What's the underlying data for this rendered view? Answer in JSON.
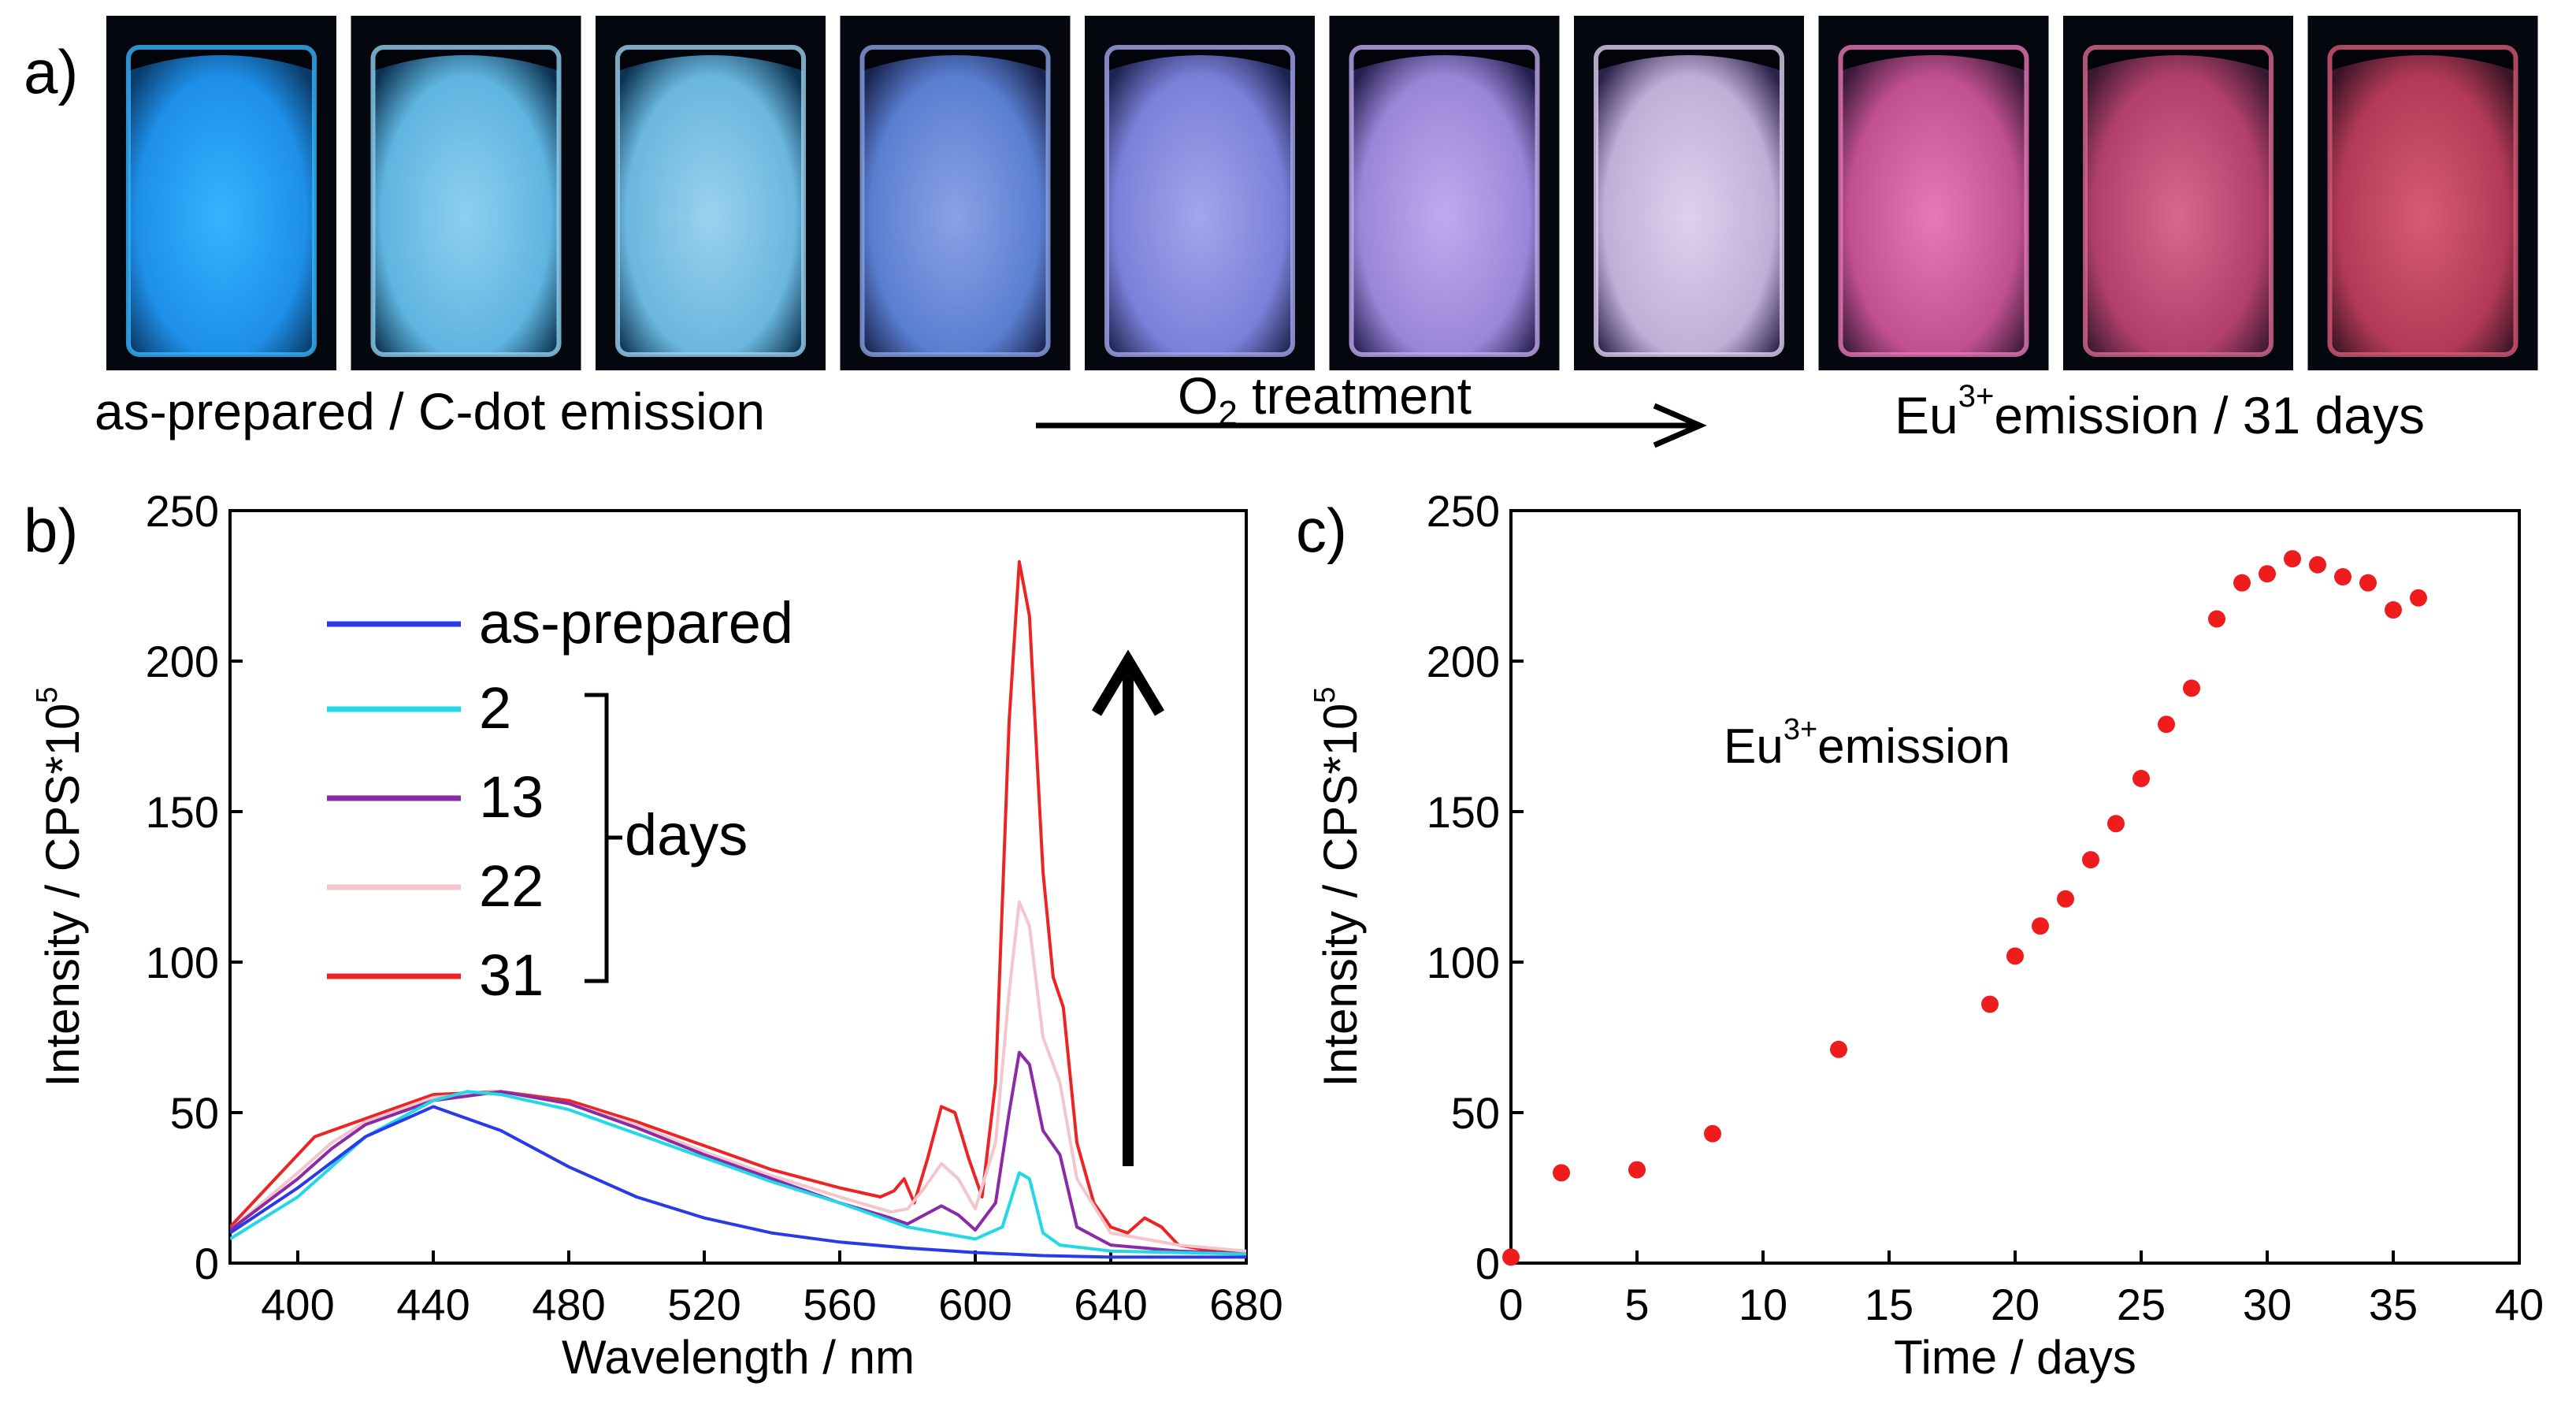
{
  "panel_a": {
    "label": "a)",
    "caption_left": "as-prepared / C-dot emission",
    "caption_center": "O2 treatment",
    "caption_center_main": "O",
    "caption_center_sub": "2",
    "caption_center_rest": " treatment",
    "caption_right_prefix": "Eu",
    "caption_right_sup": "3+",
    "caption_right_rest": "emission / 31 days",
    "vials": [
      {
        "top": "#0a3a66",
        "body": "#1e8fe8",
        "glow": "#35b4ff"
      },
      {
        "top": "#0b3350",
        "body": "#5fb4e0",
        "glow": "#8ed0f0"
      },
      {
        "top": "#0b3350",
        "body": "#6ab6de",
        "glow": "#9ad2ee"
      },
      {
        "top": "#1a2450",
        "body": "#5a7ed0",
        "glow": "#8aa2e6"
      },
      {
        "top": "#1d2350",
        "body": "#7a80d8",
        "glow": "#a2a6ec"
      },
      {
        "top": "#241e4e",
        "body": "#9a86d8",
        "glow": "#c0aaee"
      },
      {
        "top": "#2a2248",
        "body": "#c0aed8",
        "glow": "#e0d0ee"
      },
      {
        "top": "#3a1a3a",
        "body": "#c0508e",
        "glow": "#e878b8"
      },
      {
        "top": "#3a1830",
        "body": "#b0406a",
        "glow": "#d8688e"
      },
      {
        "top": "#3a1426",
        "body": "#b23a56",
        "glow": "#d85a76"
      }
    ]
  },
  "chart_data": [
    {
      "type": "line",
      "label": "b)",
      "xlabel": "Wavelength / nm",
      "ylabel_main": "Intensity / CPS*10",
      "ylabel_sup": "5",
      "xlim": [
        380,
        680
      ],
      "ylim": [
        0,
        250
      ],
      "xticks": [
        400,
        440,
        480,
        520,
        560,
        600,
        640,
        680
      ],
      "yticks": [
        0,
        50,
        100,
        150,
        200,
        250
      ],
      "legend": {
        "first": "as-prepared",
        "bracket_label": "days"
      },
      "series": [
        {
          "name": "as-prepared",
          "color": "#2a3ae8",
          "points": [
            [
              380,
              10
            ],
            [
              400,
              25
            ],
            [
              420,
              42
            ],
            [
              440,
              52
            ],
            [
              460,
              44
            ],
            [
              480,
              32
            ],
            [
              500,
              22
            ],
            [
              520,
              15
            ],
            [
              540,
              10
            ],
            [
              560,
              7
            ],
            [
              580,
              5
            ],
            [
              600,
              3.5
            ],
            [
              620,
              2.5
            ],
            [
              640,
              2
            ],
            [
              660,
              2
            ],
            [
              680,
              2
            ]
          ]
        },
        {
          "name": "2",
          "color": "#22d8e6",
          "points": [
            [
              380,
              8
            ],
            [
              400,
              22
            ],
            [
              420,
              42
            ],
            [
              440,
              54
            ],
            [
              450,
              57
            ],
            [
              460,
              56
            ],
            [
              480,
              51
            ],
            [
              500,
              43
            ],
            [
              520,
              35
            ],
            [
              540,
              27
            ],
            [
              560,
              20
            ],
            [
              575,
              14
            ],
            [
              580,
              12
            ],
            [
              585,
              11
            ],
            [
              590,
              10
            ],
            [
              595,
              9
            ],
            [
              600,
              8
            ],
            [
              608,
              12
            ],
            [
              613,
              30
            ],
            [
              616,
              28
            ],
            [
              620,
              10
            ],
            [
              625,
              6
            ],
            [
              640,
              4
            ],
            [
              660,
              3.5
            ],
            [
              680,
              3
            ]
          ]
        },
        {
          "name": "13",
          "color": "#8a2aa6",
          "points": [
            [
              380,
              11
            ],
            [
              400,
              28
            ],
            [
              410,
              38
            ],
            [
              420,
              46
            ],
            [
              440,
              54
            ],
            [
              460,
              57
            ],
            [
              480,
              53
            ],
            [
              500,
              45
            ],
            [
              520,
              36
            ],
            [
              540,
              28
            ],
            [
              560,
              20
            ],
            [
              575,
              15
            ],
            [
              580,
              13
            ],
            [
              585,
              16
            ],
            [
              590,
              19
            ],
            [
              595,
              16
            ],
            [
              600,
              11
            ],
            [
              606,
              20
            ],
            [
              610,
              50
            ],
            [
              613,
              70
            ],
            [
              616,
              66
            ],
            [
              620,
              44
            ],
            [
              625,
              36
            ],
            [
              630,
              12
            ],
            [
              640,
              6
            ],
            [
              650,
              5
            ],
            [
              660,
              4
            ],
            [
              680,
              3
            ]
          ]
        },
        {
          "name": "22",
          "color": "#f2c6cc",
          "points": [
            [
              380,
              11
            ],
            [
              400,
              30
            ],
            [
              410,
              40
            ],
            [
              420,
              47
            ],
            [
              440,
              55
            ],
            [
              460,
              57
            ],
            [
              480,
              53
            ],
            [
              500,
              46
            ],
            [
              520,
              37
            ],
            [
              540,
              29
            ],
            [
              560,
              22
            ],
            [
              575,
              17
            ],
            [
              580,
              18
            ],
            [
              585,
              25
            ],
            [
              590,
              33
            ],
            [
              595,
              28
            ],
            [
              600,
              18
            ],
            [
              606,
              40
            ],
            [
              610,
              90
            ],
            [
              613,
              120
            ],
            [
              616,
              112
            ],
            [
              620,
              75
            ],
            [
              625,
              60
            ],
            [
              630,
              28
            ],
            [
              640,
              10
            ],
            [
              650,
              8
            ],
            [
              660,
              6
            ],
            [
              680,
              4
            ]
          ]
        },
        {
          "name": "31",
          "color": "#ec2424",
          "points": [
            [
              380,
              12
            ],
            [
              395,
              30
            ],
            [
              405,
              42
            ],
            [
              410,
              44
            ],
            [
              420,
              48
            ],
            [
              440,
              56
            ],
            [
              460,
              57
            ],
            [
              480,
              54
            ],
            [
              500,
              47
            ],
            [
              520,
              39
            ],
            [
              540,
              31
            ],
            [
              560,
              25
            ],
            [
              572,
              22
            ],
            [
              576,
              24
            ],
            [
              579,
              28
            ],
            [
              582,
              20
            ],
            [
              586,
              35
            ],
            [
              590,
              52
            ],
            [
              594,
              50
            ],
            [
              598,
              35
            ],
            [
              602,
              22
            ],
            [
              606,
              60
            ],
            [
              610,
              180
            ],
            [
              613,
              233
            ],
            [
              616,
              215
            ],
            [
              620,
              130
            ],
            [
              623,
              95
            ],
            [
              626,
              85
            ],
            [
              630,
              40
            ],
            [
              635,
              20
            ],
            [
              640,
              12
            ],
            [
              645,
              10
            ],
            [
              650,
              15
            ],
            [
              655,
              12
            ],
            [
              660,
              6
            ],
            [
              670,
              4
            ],
            [
              680,
              3
            ]
          ]
        }
      ]
    },
    {
      "type": "scatter",
      "label": "c)",
      "xlabel": "Time / days",
      "ylabel_main": "Intensity / CPS*10",
      "ylabel_sup": "5",
      "xlim": [
        0,
        40
      ],
      "ylim": [
        0,
        250
      ],
      "xticks": [
        0,
        5,
        10,
        15,
        20,
        25,
        30,
        35,
        40
      ],
      "yticks": [
        0,
        50,
        100,
        150,
        200,
        250
      ],
      "annotation_prefix": "Eu",
      "annotation_sup": "3+",
      "annotation_rest": "emission",
      "color": "#ee1c1c",
      "points": [
        [
          0,
          2
        ],
        [
          2,
          30
        ],
        [
          5,
          31
        ],
        [
          8,
          43
        ],
        [
          13,
          71
        ],
        [
          19,
          86
        ],
        [
          20,
          102
        ],
        [
          21,
          112
        ],
        [
          22,
          121
        ],
        [
          23,
          134
        ],
        [
          24,
          146
        ],
        [
          25,
          161
        ],
        [
          26,
          179
        ],
        [
          27,
          191
        ],
        [
          28,
          214
        ],
        [
          29,
          226
        ],
        [
          30,
          229
        ],
        [
          31,
          234
        ],
        [
          32,
          232
        ],
        [
          33,
          228
        ],
        [
          34,
          226
        ],
        [
          35,
          217
        ],
        [
          36,
          221
        ]
      ]
    }
  ]
}
